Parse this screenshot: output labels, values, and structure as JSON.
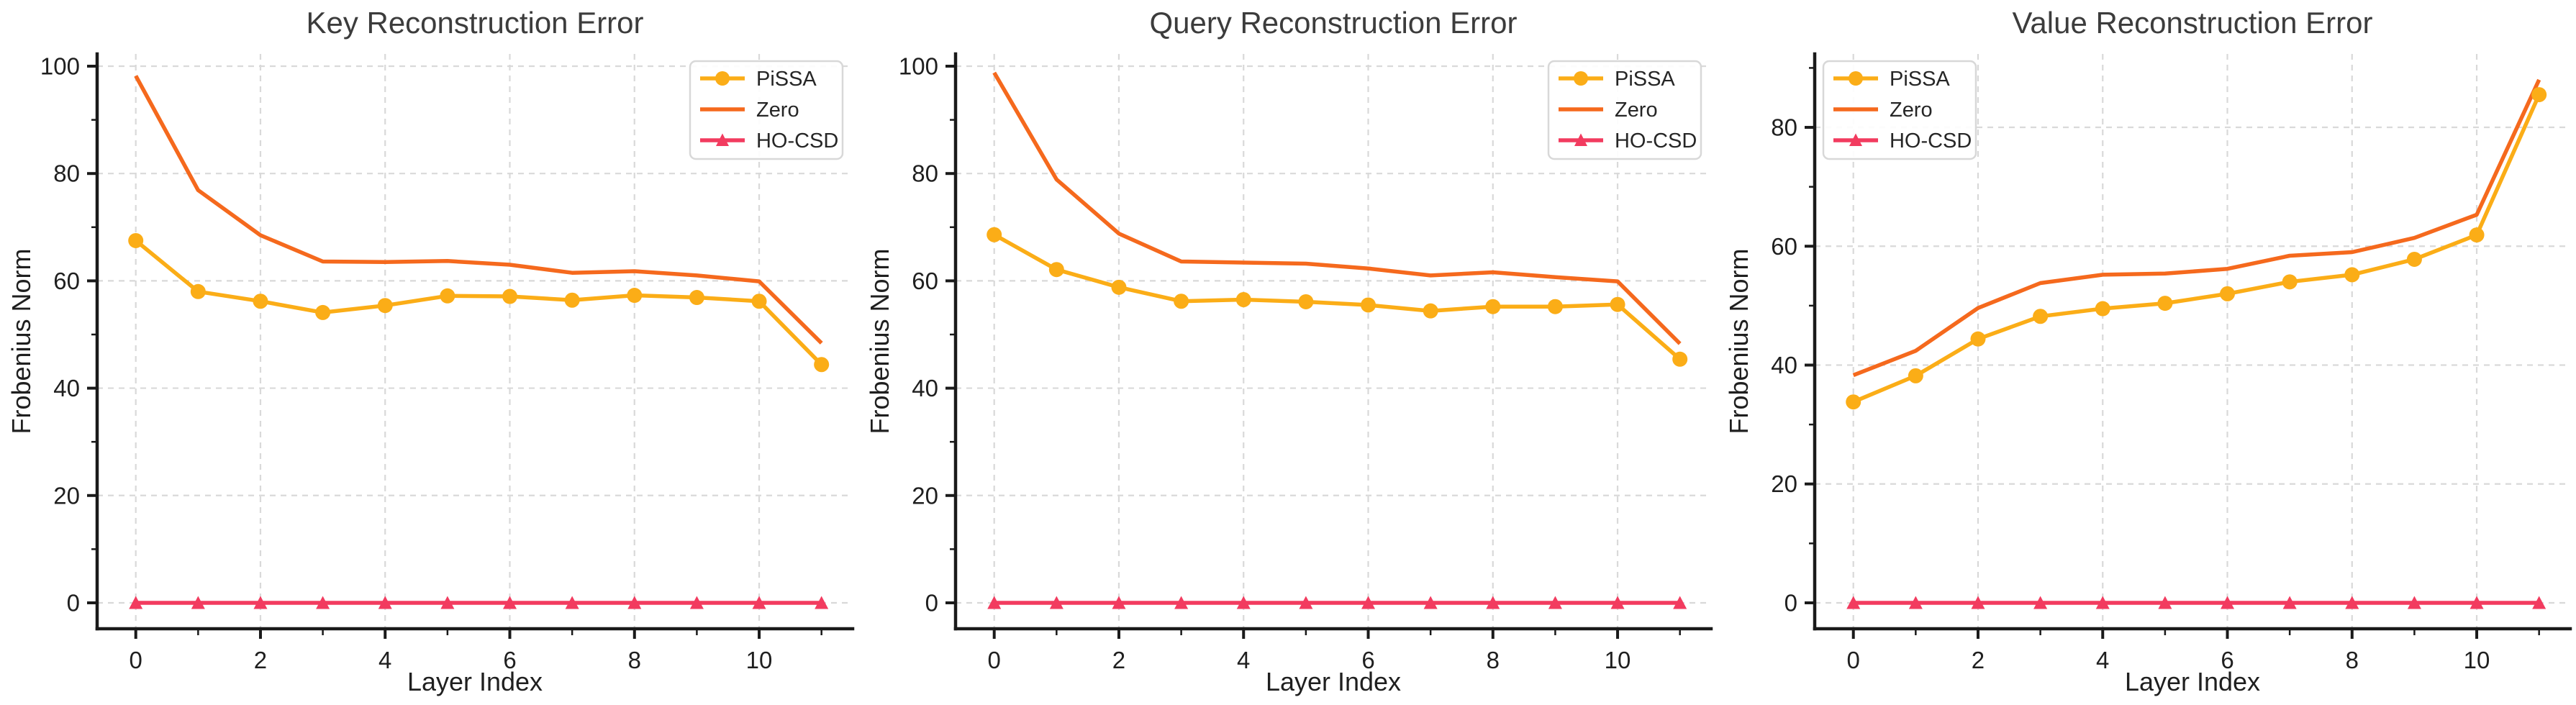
{
  "figure": {
    "background": "#ffffff",
    "panels": [
      "key",
      "query",
      "value"
    ]
  },
  "style": {
    "grid_color": "#d9d9d9",
    "spine_color": "#1a1a1a",
    "tick_color": "#1a1a1a",
    "tick_label_color": "#1f1f1f",
    "axis_label_color": "#1f1f1f",
    "title_color": "#3c3c3c",
    "legend_border_color": "#d8d8d8",
    "legend_bg_color": "#ffffff",
    "legend_text_color": "#262626"
  },
  "series_colors": {
    "PiSSA": "#FBAD17",
    "Zero": "#F5691D",
    "HO-CSD": "#F23B5F"
  },
  "chart_data": [
    {
      "type": "line",
      "title": "Key Reconstruction Error",
      "xlabel": "Layer Index",
      "ylabel": "Frobenius Norm",
      "x": [
        0,
        1,
        2,
        3,
        4,
        5,
        6,
        7,
        8,
        9,
        10,
        11
      ],
      "xticks": [
        0,
        2,
        4,
        6,
        8,
        10
      ],
      "xminorticks": [
        1,
        3,
        5,
        7,
        9,
        11
      ],
      "yticks": [
        0,
        20,
        40,
        60,
        80,
        100
      ],
      "yminorticks": [
        10,
        30,
        50,
        70,
        90
      ],
      "xlim": [
        -0.62,
        11.5
      ],
      "ylim": [
        -4.83,
        102.28
      ],
      "grid": true,
      "legend_position": "upper-right",
      "legend_labels": [
        "PiSSA",
        "Zero",
        "HO-CSD"
      ],
      "series": [
        {
          "name": "Zero",
          "color": "#F5691D",
          "marker": "none",
          "values": [
            98.2,
            76.9,
            68.5,
            63.6,
            63.5,
            63.7,
            63.0,
            61.5,
            61.8,
            61.0,
            59.9,
            48.4
          ]
        },
        {
          "name": "PiSSA",
          "color": "#FBAD17",
          "marker": "circle",
          "values": [
            67.5,
            58.0,
            56.2,
            54.1,
            55.4,
            57.2,
            57.1,
            56.4,
            57.3,
            56.9,
            56.2,
            44.4
          ]
        },
        {
          "name": "HO-CSD",
          "color": "#F23B5F",
          "marker": "triangle",
          "values": [
            0,
            0,
            0,
            0,
            0,
            0,
            0,
            0,
            0,
            0,
            0,
            0
          ]
        }
      ]
    },
    {
      "type": "line",
      "title": "Query Reconstruction Error",
      "xlabel": "Layer Index",
      "ylabel": "Frobenius Norm",
      "x": [
        0,
        1,
        2,
        3,
        4,
        5,
        6,
        7,
        8,
        9,
        10,
        11
      ],
      "xticks": [
        0,
        2,
        4,
        6,
        8,
        10
      ],
      "xminorticks": [
        1,
        3,
        5,
        7,
        9,
        11
      ],
      "yticks": [
        0,
        20,
        40,
        60,
        80,
        100
      ],
      "yminorticks": [
        10,
        30,
        50,
        70,
        90
      ],
      "xlim": [
        -0.62,
        11.5
      ],
      "ylim": [
        -4.83,
        102.28
      ],
      "grid": true,
      "legend_position": "upper-right",
      "legend_labels": [
        "PiSSA",
        "Zero",
        "HO-CSD"
      ],
      "series": [
        {
          "name": "Zero",
          "color": "#F5691D",
          "marker": "none",
          "values": [
            98.8,
            78.9,
            68.8,
            63.6,
            63.4,
            63.2,
            62.3,
            61.0,
            61.6,
            60.7,
            59.9,
            48.3
          ]
        },
        {
          "name": "PiSSA",
          "color": "#FBAD17",
          "marker": "circle",
          "values": [
            68.6,
            62.1,
            58.8,
            56.2,
            56.5,
            56.1,
            55.5,
            54.4,
            55.2,
            55.2,
            55.6,
            45.4
          ]
        },
        {
          "name": "HO-CSD",
          "color": "#F23B5F",
          "marker": "triangle",
          "values": [
            0,
            0,
            0,
            0,
            0,
            0,
            0,
            0,
            0,
            0,
            0,
            0
          ]
        }
      ]
    },
    {
      "type": "line",
      "title": "Value Reconstruction Error",
      "xlabel": "Layer Index",
      "ylabel": "Frobenius Norm",
      "x": [
        0,
        1,
        2,
        3,
        4,
        5,
        6,
        7,
        8,
        9,
        10,
        11
      ],
      "xticks": [
        0,
        2,
        4,
        6,
        8,
        10
      ],
      "xminorticks": [
        1,
        3,
        5,
        7,
        9,
        11
      ],
      "yticks": [
        0,
        20,
        40,
        60,
        80
      ],
      "yminorticks": [
        10,
        30,
        50,
        70,
        90
      ],
      "xlim": [
        -0.62,
        11.5
      ],
      "ylim": [
        -4.36,
        92.35
      ],
      "grid": true,
      "legend_position": "upper-left",
      "legend_labels": [
        "PiSSA",
        "Zero",
        "HO-CSD"
      ],
      "series": [
        {
          "name": "Zero",
          "color": "#F5691D",
          "marker": "none",
          "values": [
            38.3,
            42.4,
            49.6,
            53.8,
            55.2,
            55.4,
            56.2,
            58.4,
            59.0,
            61.4,
            65.3,
            88.0
          ]
        },
        {
          "name": "PiSSA",
          "color": "#FBAD17",
          "marker": "circle",
          "values": [
            33.8,
            38.2,
            44.4,
            48.2,
            49.5,
            50.4,
            52.0,
            54.0,
            55.2,
            57.8,
            61.9,
            85.5
          ]
        },
        {
          "name": "HO-CSD",
          "color": "#F23B5F",
          "marker": "triangle",
          "values": [
            0,
            0,
            0,
            0,
            0,
            0,
            0,
            0,
            0,
            0,
            0,
            0
          ]
        }
      ]
    }
  ]
}
